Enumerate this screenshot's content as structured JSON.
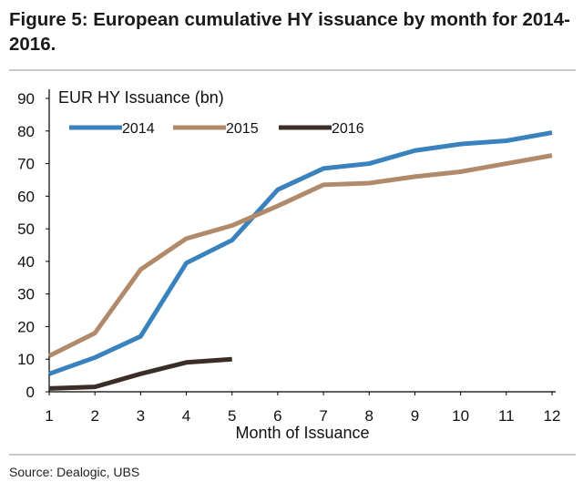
{
  "figure": {
    "title": "Figure 5: European cumulative HY issuance by month for 2014-2016.",
    "source": "Source:  Dealogic, UBS"
  },
  "colors": {
    "2014": "#3a82be",
    "2015": "#b08a6a",
    "2016": "#3b2e26"
  },
  "chart_data": {
    "type": "line",
    "title": "",
    "xlabel": "Month of Issuance",
    "ylabel": "EUR HY Issuance (bn)",
    "xlim": [
      1,
      12
    ],
    "ylim": [
      0,
      90
    ],
    "x_ticks": [
      "1",
      "2",
      "3",
      "4",
      "5",
      "6",
      "7",
      "8",
      "9",
      "10",
      "11",
      "12"
    ],
    "y_ticks": [
      "0",
      "10",
      "20",
      "30",
      "40",
      "50",
      "60",
      "70",
      "80",
      "90"
    ],
    "legend_position": "top-left",
    "grid": false,
    "series": [
      {
        "name": "2014",
        "x": [
          1,
          2,
          3,
          4,
          5,
          6,
          7,
          8,
          9,
          10,
          11,
          12
        ],
        "values": [
          5.5,
          10.5,
          17,
          39.5,
          46.5,
          62,
          68.5,
          70,
          74,
          76,
          77,
          79.5
        ]
      },
      {
        "name": "2015",
        "x": [
          1,
          2,
          3,
          4,
          5,
          6,
          7,
          8,
          9,
          10,
          11,
          12
        ],
        "values": [
          11,
          18,
          37.5,
          47,
          51,
          57,
          63.5,
          64,
          66,
          67.5,
          70,
          72.5
        ]
      },
      {
        "name": "2016",
        "x": [
          1,
          2,
          3,
          4,
          5
        ],
        "values": [
          1,
          1.5,
          5.5,
          9,
          10
        ]
      }
    ]
  }
}
